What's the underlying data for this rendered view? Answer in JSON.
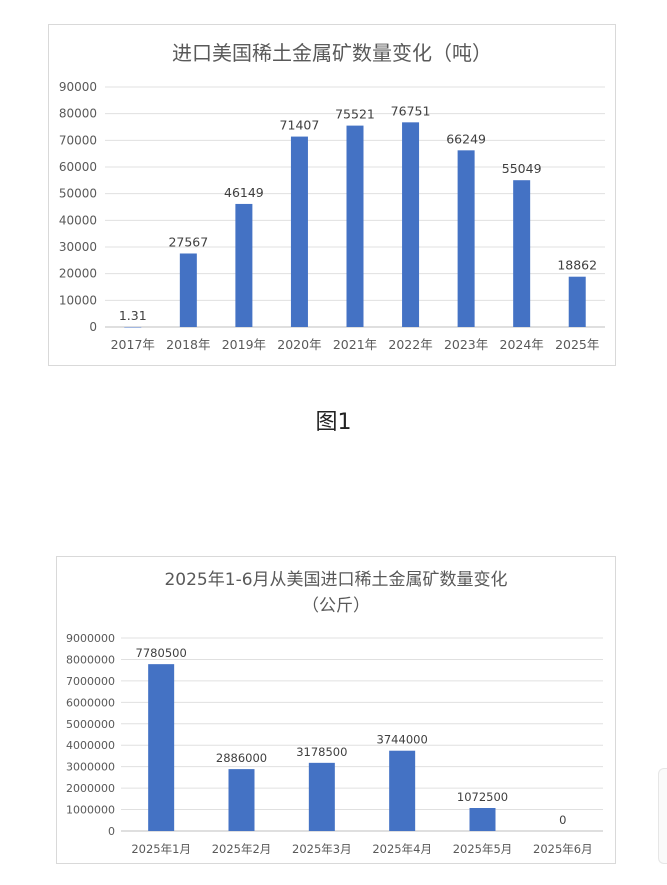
{
  "figure_caption": "图1",
  "chart_data": [
    {
      "type": "bar",
      "title": "进口美国稀土金属矿数量变化（吨）",
      "title_line2": "",
      "categories": [
        "2017年",
        "2018年",
        "2019年",
        "2020年",
        "2021年",
        "2022年",
        "2023年",
        "2024年",
        "2025年"
      ],
      "values": [
        1.31,
        27567,
        46149,
        71407,
        75521,
        76751,
        66249,
        55049,
        18862
      ],
      "value_labels": [
        "1.31",
        "27567",
        "46149",
        "71407",
        "75521",
        "76751",
        "66249",
        "55049",
        "18862"
      ],
      "ylim": [
        0,
        90000
      ],
      "yticks": [
        0,
        10000,
        20000,
        30000,
        40000,
        50000,
        60000,
        70000,
        80000,
        90000
      ],
      "ytick_labels": [
        "0",
        "10000",
        "20000",
        "30000",
        "40000",
        "50000",
        "60000",
        "70000",
        "80000",
        "90000"
      ],
      "grid": true,
      "legend": "none",
      "bar_color": "#4472c4",
      "xlabel": "",
      "ylabel": ""
    },
    {
      "type": "bar",
      "title": "2025年1-6月从美国进口稀土金属矿数量变化",
      "title_line2": "（公斤）",
      "categories": [
        "2025年1月",
        "2025年2月",
        "2025年3月",
        "2025年4月",
        "2025年5月",
        "2025年6月"
      ],
      "values": [
        7780500,
        2886000,
        3178500,
        3744000,
        1072500,
        0
      ],
      "value_labels": [
        "7780500",
        "2886000",
        "3178500",
        "3744000",
        "1072500",
        "0"
      ],
      "ylim": [
        0,
        9000000
      ],
      "yticks": [
        0,
        1000000,
        2000000,
        3000000,
        4000000,
        5000000,
        6000000,
        7000000,
        8000000,
        9000000
      ],
      "ytick_labels": [
        "0",
        "1000000",
        "2000000",
        "3000000",
        "4000000",
        "5000000",
        "6000000",
        "7000000",
        "8000000",
        "9000000"
      ],
      "grid": true,
      "legend": "none",
      "bar_color": "#4472c4",
      "xlabel": "",
      "ylabel": ""
    }
  ]
}
